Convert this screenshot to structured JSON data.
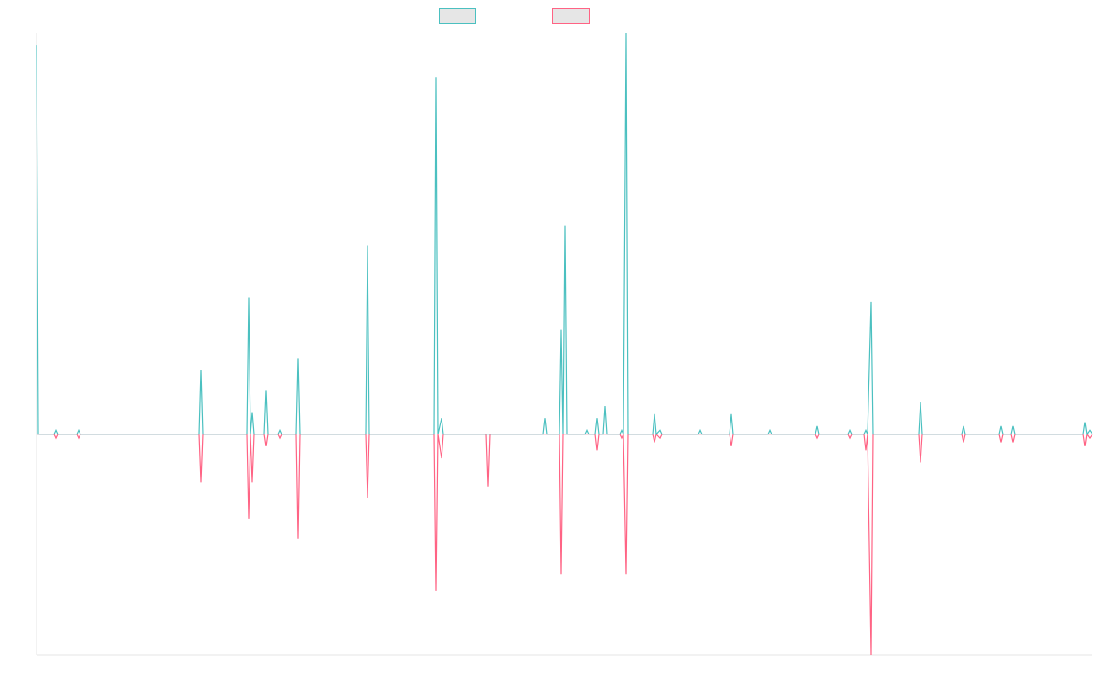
{
  "chart_data": {
    "type": "line",
    "x": [
      0,
      2,
      19,
      21,
      23,
      44,
      46,
      48,
      178,
      180,
      182,
      230,
      232,
      234,
      236,
      238,
      249,
      251,
      253,
      264,
      266,
      268,
      284,
      286,
      288,
      360,
      362,
      364,
      435,
      437,
      439,
      443,
      445,
      492,
      494,
      496,
      554,
      556,
      558,
      572,
      574,
      576,
      578,
      580,
      600,
      602,
      604,
      611,
      613,
      615,
      620,
      622,
      624,
      638,
      640,
      642,
      645,
      647,
      674,
      676,
      678,
      682,
      684,
      724,
      726,
      728,
      758,
      760,
      762,
      800,
      802,
      804,
      852,
      854,
      856,
      888,
      890,
      892,
      905,
      907,
      909,
      913,
      915,
      965,
      967,
      969,
      1012,
      1014,
      1016,
      1053,
      1055,
      1057,
      1066,
      1068,
      1070,
      1145,
      1147,
      1149,
      1152,
      1155
    ],
    "series": [
      {
        "color": "#ff6384",
        "values": [
          0,
          0,
          0,
          -1,
          0,
          0,
          -1,
          0,
          0,
          -12,
          0,
          0,
          -21,
          0,
          -12,
          0,
          0,
          -3,
          0,
          0,
          -1,
          0,
          0,
          -26,
          0,
          0,
          -16,
          0,
          0,
          -39,
          0,
          -6,
          0,
          0,
          -13,
          0,
          0,
          0,
          0,
          0,
          -35,
          0,
          0,
          0,
          0,
          0,
          0,
          0,
          -4,
          0,
          0,
          0,
          0,
          0,
          -1,
          0,
          -35,
          0,
          0,
          -2,
          0,
          -1,
          0,
          0,
          0,
          0,
          0,
          -3,
          0,
          0,
          0,
          0,
          0,
          -1,
          0,
          0,
          -1,
          0,
          0,
          -4,
          0,
          -55,
          0,
          0,
          -7,
          0,
          0,
          -2,
          0,
          0,
          -2,
          0,
          0,
          -2,
          0,
          0,
          -3,
          0,
          -1,
          0
        ]
      },
      {
        "color": "#4bc0c0",
        "values": [
          97,
          0,
          0,
          1,
          0,
          0,
          1,
          0,
          0,
          16,
          0,
          0,
          34,
          0,
          5.5,
          0,
          0,
          11,
          0,
          0,
          1,
          0,
          0,
          19,
          0,
          0,
          47,
          0,
          0,
          89,
          0,
          4,
          0,
          0,
          0,
          0,
          0,
          4,
          0,
          0,
          26,
          0,
          52,
          0,
          0,
          1,
          0,
          0,
          4,
          0,
          0,
          7,
          0,
          0,
          1,
          0,
          100,
          0,
          0,
          5,
          0,
          1,
          0,
          0,
          1,
          0,
          0,
          5,
          0,
          0,
          1,
          0,
          0,
          2,
          0,
          0,
          1,
          0,
          0,
          1,
          0,
          33,
          0,
          0,
          8,
          0,
          0,
          2,
          0,
          0,
          2,
          0,
          0,
          2,
          0,
          0,
          3,
          0,
          1,
          0
        ]
      }
    ],
    "legend_order": [
      1,
      0
    ],
    "xlim": [
      0,
      1155
    ],
    "ylim": [
      -55,
      100
    ]
  }
}
